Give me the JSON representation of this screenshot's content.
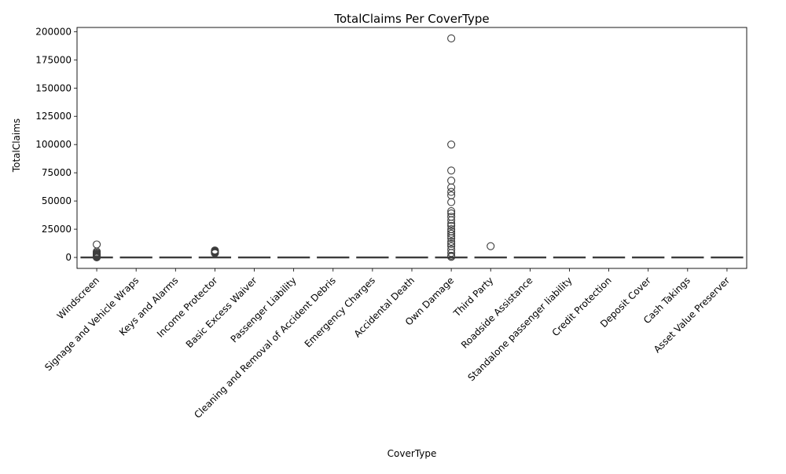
{
  "chart_data": {
    "type": "box",
    "title": "TotalClaims Per CoverType",
    "xlabel": "CoverType",
    "ylabel": "TotalClaims",
    "ylim": [
      -9700,
      203700
    ],
    "yticks": [
      0,
      25000,
      50000,
      75000,
      100000,
      125000,
      150000,
      175000,
      200000
    ],
    "categories": [
      "Windscreen",
      "Signage and Vehicle Wraps",
      "Keys and Alarms",
      "Income Protector",
      "Basic Excess Waiver",
      "Passenger Liability",
      "Cleaning and Removal of Accident Debris",
      "Emergency Charges",
      "Accidental Death",
      "Own Damage",
      "Third Party",
      "Roadside Assistance",
      "Standalone passenger liability",
      "Credit Protection",
      "Deposit Cover",
      "Cash Takings",
      "Asset Value Preserver"
    ],
    "box_color": "#ffffff",
    "line_color": "#3d3d3d",
    "boxes": [
      {
        "q1": 0,
        "median": 0,
        "q3": 0,
        "whisker_low": 0,
        "whisker_high": 0,
        "outliers": [
          11500,
          5200,
          4200,
          3500,
          2900,
          2400,
          2000,
          1600,
          1200,
          900,
          600,
          300,
          100
        ]
      },
      {
        "q1": 0,
        "median": 0,
        "q3": 0,
        "whisker_low": 0,
        "whisker_high": 0,
        "outliers": []
      },
      {
        "q1": 0,
        "median": 0,
        "q3": 0,
        "whisker_low": 0,
        "whisker_high": 0,
        "outliers": []
      },
      {
        "q1": 0,
        "median": 0,
        "q3": 0,
        "whisker_low": 0,
        "whisker_high": 0,
        "outliers": [
          6200,
          5700,
          5300,
          4900,
          4500,
          4100,
          3700
        ]
      },
      {
        "q1": 0,
        "median": 0,
        "q3": 0,
        "whisker_low": 0,
        "whisker_high": 0,
        "outliers": []
      },
      {
        "q1": 0,
        "median": 0,
        "q3": 0,
        "whisker_low": 0,
        "whisker_high": 0,
        "outliers": []
      },
      {
        "q1": 0,
        "median": 0,
        "q3": 0,
        "whisker_low": 0,
        "whisker_high": 0,
        "outliers": []
      },
      {
        "q1": 0,
        "median": 0,
        "q3": 0,
        "whisker_low": 0,
        "whisker_high": 0,
        "outliers": []
      },
      {
        "q1": 0,
        "median": 0,
        "q3": 0,
        "whisker_low": 0,
        "whisker_high": 0,
        "outliers": []
      },
      {
        "q1": 0,
        "median": 0,
        "q3": 0,
        "whisker_low": 0,
        "whisker_high": 0,
        "outliers": [
          194000,
          100000,
          77000,
          68000,
          62000,
          58000,
          55000,
          49000,
          41000,
          39000,
          36000,
          33000,
          30000,
          28000,
          25000,
          23000,
          21000,
          19000,
          17000,
          14000,
          12000,
          10000,
          7000,
          4000,
          1500,
          500
        ]
      },
      {
        "q1": 0,
        "median": 0,
        "q3": 0,
        "whisker_low": 0,
        "whisker_high": 0,
        "outliers": [
          10000
        ]
      },
      {
        "q1": 0,
        "median": 0,
        "q3": 0,
        "whisker_low": 0,
        "whisker_high": 0,
        "outliers": []
      },
      {
        "q1": 0,
        "median": 0,
        "q3": 0,
        "whisker_low": 0,
        "whisker_high": 0,
        "outliers": []
      },
      {
        "q1": 0,
        "median": 0,
        "q3": 0,
        "whisker_low": 0,
        "whisker_high": 0,
        "outliers": []
      },
      {
        "q1": 0,
        "median": 0,
        "q3": 0,
        "whisker_low": 0,
        "whisker_high": 0,
        "outliers": []
      },
      {
        "q1": 0,
        "median": 0,
        "q3": 0,
        "whisker_low": 0,
        "whisker_high": 0,
        "outliers": []
      },
      {
        "q1": 0,
        "median": 0,
        "q3": 0,
        "whisker_low": 0,
        "whisker_high": 0,
        "outliers": []
      }
    ],
    "grid": false,
    "legend": "none",
    "x_tick_rotation_deg": 45
  }
}
